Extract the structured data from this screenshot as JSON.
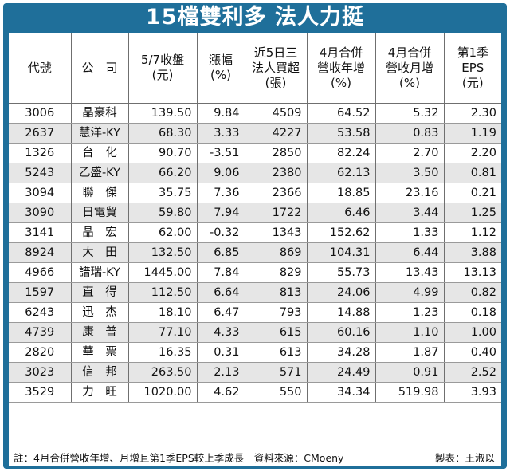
{
  "title": "15檔雙利多 法人力挺",
  "columns": [
    "代號",
    "公　司",
    "5/7收盤\n(元)",
    "漲幅\n(%)",
    "近5日三\n法人買超\n(張)",
    "4月合併\n營收年增\n(%)",
    "4月合併\n營收月增\n(%)",
    "第1季\nEPS\n(元)"
  ],
  "rows": [
    [
      "3006",
      "晶豪科",
      "139.50",
      "9.84",
      "4509",
      "64.52",
      "5.32",
      "2.30"
    ],
    [
      "2637",
      "慧洋-KY",
      "68.30",
      "3.33",
      "4227",
      "53.58",
      "0.83",
      "1.19"
    ],
    [
      "1326",
      "台　化",
      "90.70",
      "-3.51",
      "2850",
      "82.24",
      "2.70",
      "2.20"
    ],
    [
      "5243",
      "乙盛-KY",
      "66.20",
      "9.06",
      "2380",
      "62.13",
      "3.50",
      "0.81"
    ],
    [
      "3094",
      "聯　傑",
      "35.75",
      "7.36",
      "2366",
      "18.85",
      "23.16",
      "0.21"
    ],
    [
      "3090",
      "日電貿",
      "59.80",
      "7.94",
      "1722",
      "6.46",
      "3.44",
      "1.25"
    ],
    [
      "3141",
      "晶　宏",
      "62.00",
      "-0.32",
      "1343",
      "152.62",
      "1.33",
      "1.12"
    ],
    [
      "8924",
      "大　田",
      "132.50",
      "6.85",
      "869",
      "104.31",
      "6.44",
      "3.88"
    ],
    [
      "4966",
      "譜瑞-KY",
      "1445.00",
      "7.84",
      "829",
      "55.73",
      "13.43",
      "13.13"
    ],
    [
      "1597",
      "直　得",
      "112.50",
      "6.64",
      "813",
      "24.06",
      "4.99",
      "0.82"
    ],
    [
      "6243",
      "迅　杰",
      "18.10",
      "6.47",
      "793",
      "14.88",
      "1.23",
      "0.18"
    ],
    [
      "4739",
      "康　普",
      "77.10",
      "4.33",
      "615",
      "60.16",
      "1.10",
      "1.00"
    ],
    [
      "2820",
      "華　票",
      "16.35",
      "0.31",
      "613",
      "34.28",
      "1.87",
      "0.40"
    ],
    [
      "3023",
      "信　邦",
      "263.50",
      "2.13",
      "571",
      "24.49",
      "0.91",
      "2.52"
    ],
    [
      "3529",
      "力　旺",
      "1020.00",
      "4.62",
      "550",
      "34.34",
      "519.98",
      "3.93"
    ]
  ],
  "footer": {
    "note": "註：4月合併營收年增、月增且第1季EPS較上季成長　資料來源：CMoeny",
    "credit": "製表：王淑以"
  },
  "colors": {
    "frame": "#1f6f9a",
    "stripe": "#e6e6e6"
  }
}
